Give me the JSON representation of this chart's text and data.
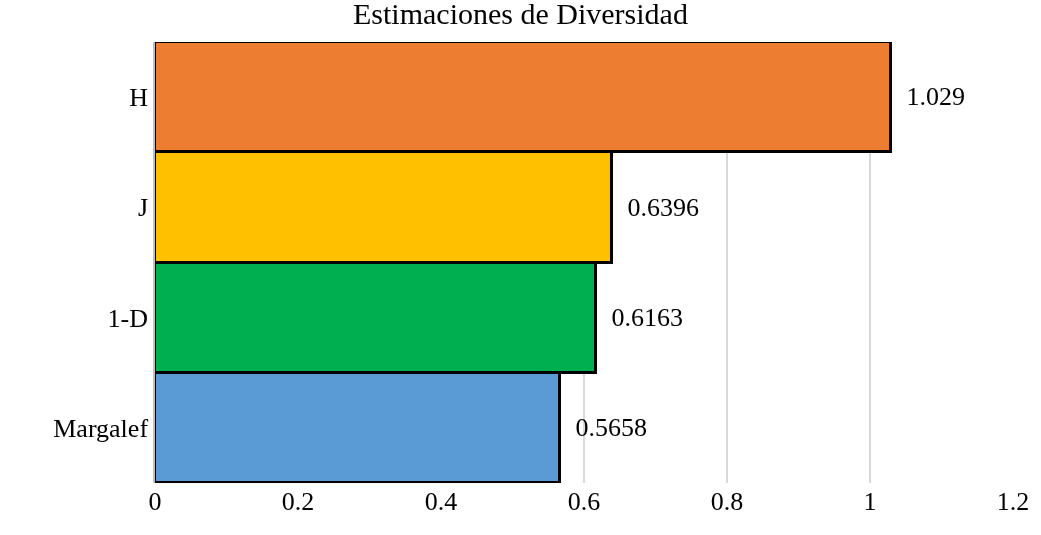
{
  "chart_data": {
    "type": "bar",
    "orientation": "horizontal",
    "title": "Estimaciones de Diversidad",
    "categories": [
      "H",
      "J",
      "1-D",
      "Margalef"
    ],
    "values": [
      1.029,
      0.6396,
      0.6163,
      0.5658
    ],
    "colors": [
      "#ed7d31",
      "#ffc000",
      "#00b050",
      "#5b9bd5"
    ],
    "xlim": [
      0,
      1.2
    ],
    "xticks": [
      0,
      0.2,
      0.4,
      0.6,
      0.8,
      1,
      1.2
    ],
    "grid": "x",
    "data_labels": true
  }
}
